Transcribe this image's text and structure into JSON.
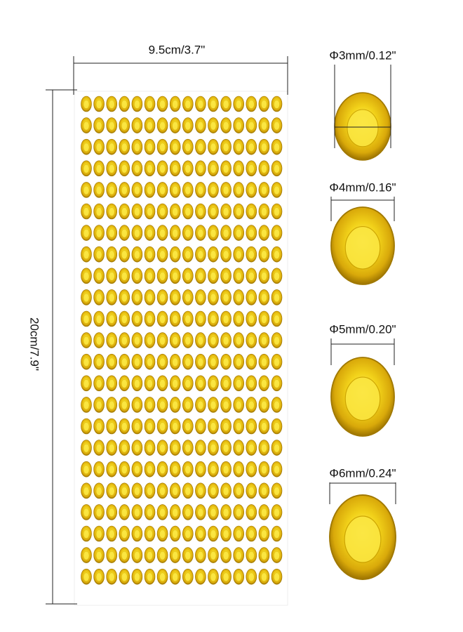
{
  "dimensions": {
    "width": "9.5cm/3.7\"",
    "height": "20cm/7.9\""
  },
  "sizes": [
    {
      "label": "Φ3mm/0.12\""
    },
    {
      "label": "Φ4mm/0.16\""
    },
    {
      "label": "Φ5mm/0.20\""
    },
    {
      "label": "Φ6mm/0.24\""
    }
  ]
}
